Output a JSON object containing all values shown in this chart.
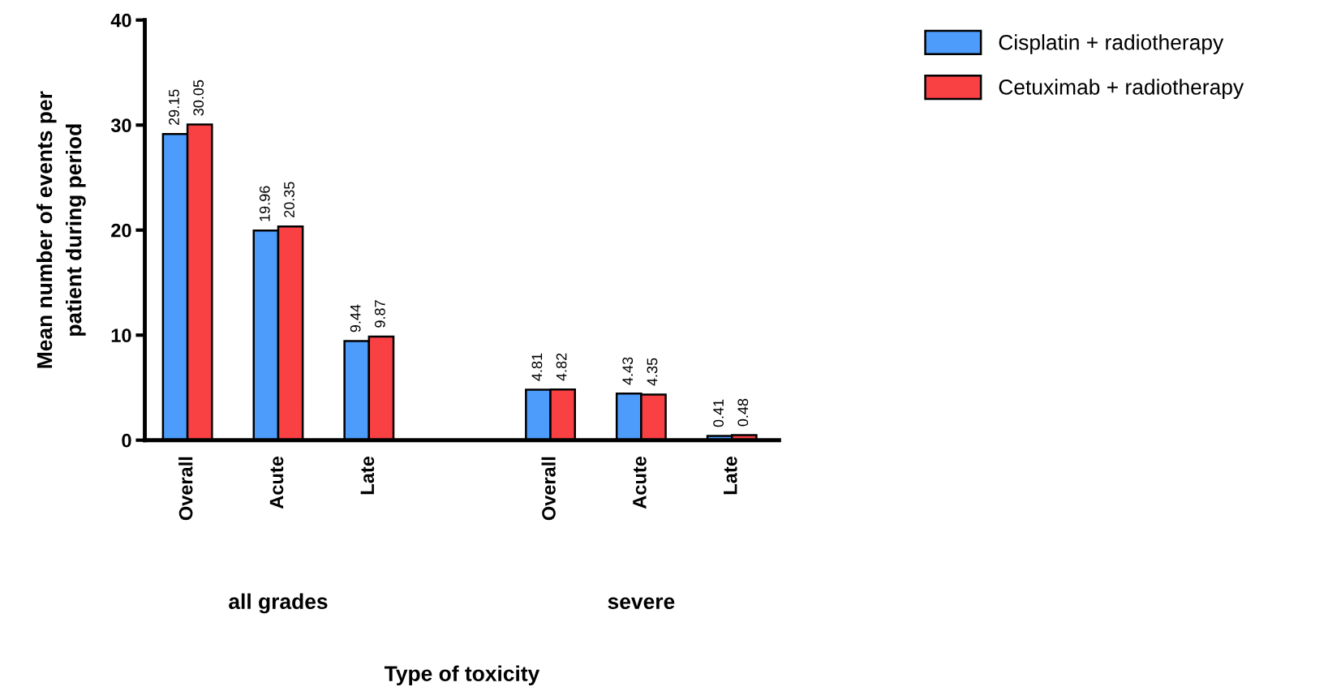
{
  "chart_data": {
    "type": "bar",
    "ylabel": "Mean number of events per\npatient during period",
    "categories": [
      "Overall",
      "Acute",
      "Late",
      null,
      "Overall",
      "Acute",
      "Late"
    ],
    "series": [
      {
        "name": "Cisplatin + radiotherapy",
        "color": "#4d9cfb",
        "values": [
          29.15,
          19.96,
          9.44,
          null,
          4.81,
          4.43,
          0.41
        ]
      },
      {
        "name": "Cetuximab + radiotherapy",
        "color": "#f94144",
        "values": [
          30.05,
          20.35,
          9.87,
          null,
          4.82,
          4.35,
          0.48
        ]
      }
    ],
    "ylim": [
      0,
      40
    ],
    "yticks": [
      0,
      10,
      20,
      30,
      40
    ],
    "data_labels": true,
    "grid": false,
    "legend": "top right",
    "annotations": [
      "all grades",
      "severe",
      "Type of toxicity"
    ]
  }
}
